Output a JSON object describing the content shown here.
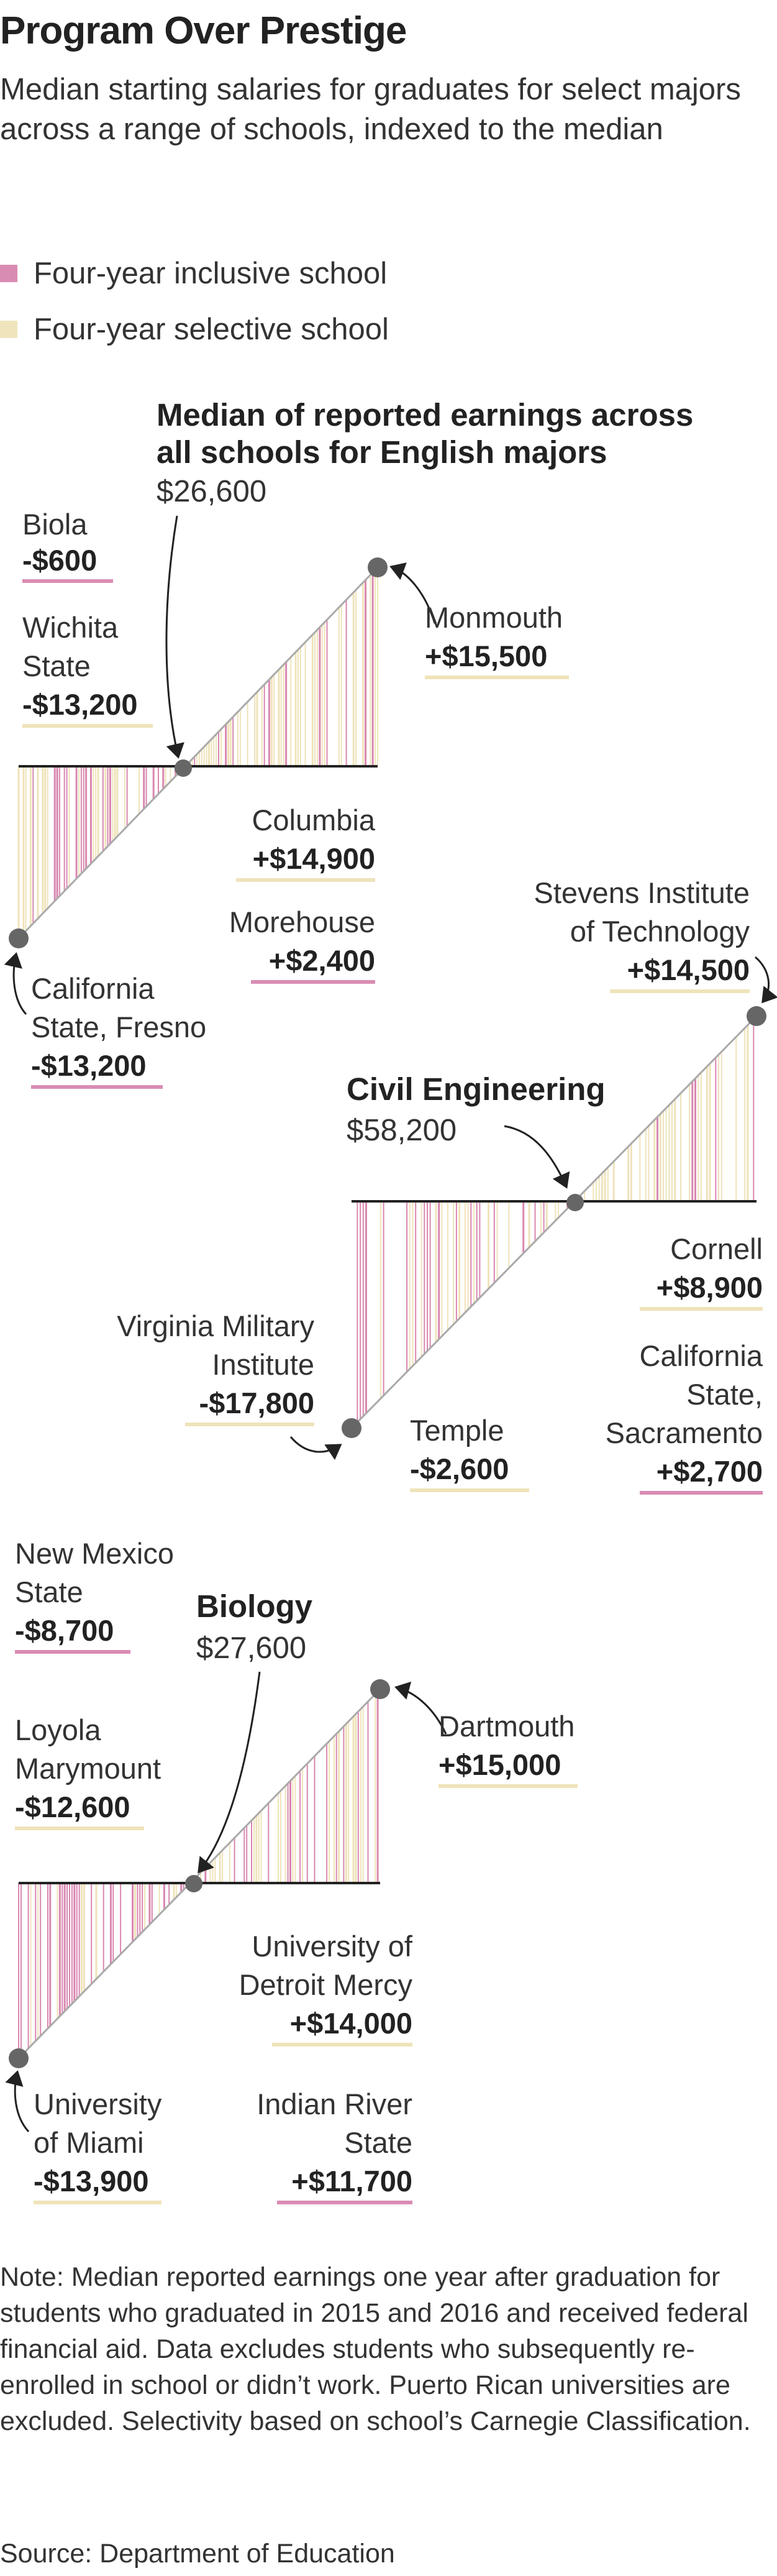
{
  "title": "Program Over Prestige",
  "subtitle": "Median starting salaries for graduates for select majors across a range of schools, indexed to the median",
  "legend": {
    "inclusive": {
      "label": "Four-year inclusive school",
      "color": "#d98cb3"
    },
    "selective": {
      "label": "Four-year selective school",
      "color": "#f0e4bc"
    }
  },
  "colors": {
    "pink_line": "#d987b0",
    "cream_line": "#efe3ba",
    "baseline": "#222222",
    "diagonal": "#aaaaaa",
    "dot": "#666666"
  },
  "chart_data": [
    {
      "type": "bar",
      "major": "English",
      "title": "Median of reported earnings across all schools for English majors",
      "median_label": "$26,600",
      "median": 26600,
      "ylim": [
        -13200,
        15500
      ],
      "annotations": [
        {
          "school": "Biola",
          "value": -600,
          "value_label": "-$600",
          "type": "inclusive"
        },
        {
          "school": "Wichita State",
          "value": -13200,
          "value_label": "-$13,200",
          "type": "selective"
        },
        {
          "school": "Monmouth",
          "value": 15500,
          "value_label": "+$15,500",
          "type": "selective"
        },
        {
          "school": "Columbia",
          "value": 14900,
          "value_label": "+$14,900",
          "type": "selective"
        },
        {
          "school": "Morehouse",
          "value": 2400,
          "value_label": "+$2,400",
          "type": "inclusive"
        },
        {
          "school": "California State, Fresno",
          "value": -13200,
          "value_label": "-$13,200",
          "type": "inclusive"
        }
      ]
    },
    {
      "type": "bar",
      "major": "Civil Engineering",
      "title": "Civil Engineering",
      "median_label": "$58,200",
      "median": 58200,
      "ylim": [
        -17800,
        14500
      ],
      "annotations": [
        {
          "school": "Stevens Institute of Technology",
          "value": 14500,
          "value_label": "+$14,500",
          "type": "selective"
        },
        {
          "school": "Cornell",
          "value": 8900,
          "value_label": "+$8,900",
          "type": "selective"
        },
        {
          "school": "Virginia Military Institute",
          "value": -17800,
          "value_label": "-$17,800",
          "type": "selective"
        },
        {
          "school": "Temple",
          "value": -2600,
          "value_label": "-$2,600",
          "type": "selective"
        },
        {
          "school": "California State, Sacramento",
          "value": 2700,
          "value_label": "+$2,700",
          "type": "inclusive"
        }
      ]
    },
    {
      "type": "bar",
      "major": "Biology",
      "title": "Biology",
      "median_label": "$27,600",
      "median": 27600,
      "ylim": [
        -13900,
        15000
      ],
      "annotations": [
        {
          "school": "New Mexico State",
          "value": -8700,
          "value_label": "-$8,700",
          "type": "inclusive"
        },
        {
          "school": "Loyola Marymount",
          "value": -12600,
          "value_label": "-$12,600",
          "type": "selective"
        },
        {
          "school": "Dartmouth",
          "value": 15000,
          "value_label": "+$15,000",
          "type": "selective"
        },
        {
          "school": "University of Detroit Mercy",
          "value": 14000,
          "value_label": "+$14,000",
          "type": "selective"
        },
        {
          "school": "Indian River State",
          "value": 11700,
          "value_label": "+$11,700",
          "type": "inclusive"
        },
        {
          "school": "University of Miami",
          "value": -13900,
          "value_label": "-$13,900",
          "type": "selective"
        }
      ]
    }
  ],
  "labels": {
    "english": {
      "title_l1": "Median of reported earnings across",
      "title_l2": "all schools for English majors",
      "biola": "Biola",
      "wichita_l1": "Wichita",
      "wichita_l2": "State",
      "monmouth": "Monmouth",
      "columbia": "Columbia",
      "morehouse": "Morehouse",
      "fresno_l1": "California",
      "fresno_l2": "State, Fresno"
    },
    "civil": {
      "stevens_l1": "Stevens Institute",
      "stevens_l2": "of Technology",
      "cornell": "Cornell",
      "vmi_l1": "Virginia Military",
      "vmi_l2": "Institute",
      "temple": "Temple",
      "sac_l1": "California",
      "sac_l2": "State,",
      "sac_l3": "Sacramento"
    },
    "biology": {
      "nms_l1": "New Mexico",
      "nms_l2": "State",
      "loyola_l1": "Loyola",
      "loyola_l2": "Marymount",
      "dartmouth": "Dartmouth",
      "detroit_l1": "University of",
      "detroit_l2": "Detroit Mercy",
      "irs_l1": "Indian River",
      "irs_l2": "State",
      "miami_l1": "University",
      "miami_l2": "of Miami"
    }
  },
  "note": "Note: Median reported earnings one year after graduation for students who graduated in 2015 and 2016 and received federal financial aid. Data excludes students who subsequently re-enrolled in school or didn’t work. Puerto Rican universities are excluded. Selectivity based on school’s Carnegie Classification.",
  "source": "Source: Department of Education"
}
